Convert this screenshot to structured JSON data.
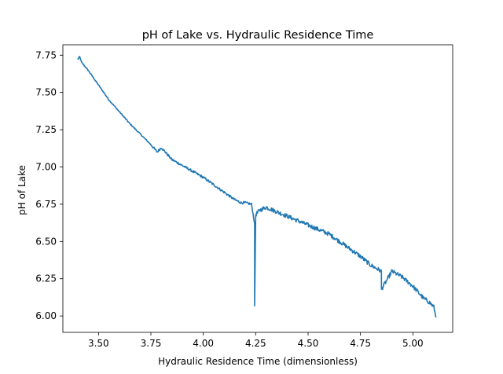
{
  "chart_data": {
    "type": "line",
    "title": "pH of Lake vs. Hydraulic Residence Time",
    "xlabel": "Hydraulic Residence Time (dimensionless)",
    "ylabel": "pH of Lake",
    "xlim": [
      3.33,
      5.19
    ],
    "ylim": [
      5.89,
      7.82
    ],
    "xticks": [
      "3.50",
      "3.75",
      "4.00",
      "4.25",
      "4.50",
      "4.75",
      "5.00"
    ],
    "yticks": [
      "6.00",
      "6.25",
      "6.50",
      "6.75",
      "7.00",
      "7.25",
      "7.50",
      "7.75"
    ],
    "grid": false,
    "series": [
      {
        "color": "#1f77b4",
        "x": [
          3.4,
          3.41,
          3.42,
          3.45,
          3.5,
          3.55,
          3.6,
          3.65,
          3.7,
          3.75,
          3.78,
          3.8,
          3.85,
          3.9,
          3.95,
          4.0,
          4.05,
          4.1,
          4.15,
          4.18,
          4.2,
          4.23,
          4.245,
          4.245,
          4.25,
          4.27,
          4.3,
          4.35,
          4.4,
          4.45,
          4.5,
          4.55,
          4.6,
          4.65,
          4.7,
          4.75,
          4.8,
          4.85,
          4.85,
          4.88,
          4.9,
          4.95,
          5.0,
          5.05,
          5.08,
          5.1,
          5.11
        ],
        "y": [
          7.72,
          7.74,
          7.7,
          7.65,
          7.55,
          7.45,
          7.37,
          7.29,
          7.22,
          7.15,
          7.1,
          7.13,
          7.05,
          7.01,
          6.97,
          6.93,
          6.88,
          6.83,
          6.78,
          6.76,
          6.76,
          6.75,
          6.62,
          6.06,
          6.68,
          6.71,
          6.73,
          6.7,
          6.67,
          6.64,
          6.61,
          6.58,
          6.55,
          6.5,
          6.45,
          6.4,
          6.34,
          6.3,
          6.18,
          6.25,
          6.3,
          6.26,
          6.2,
          6.12,
          6.09,
          6.06,
          5.99
        ]
      }
    ]
  }
}
